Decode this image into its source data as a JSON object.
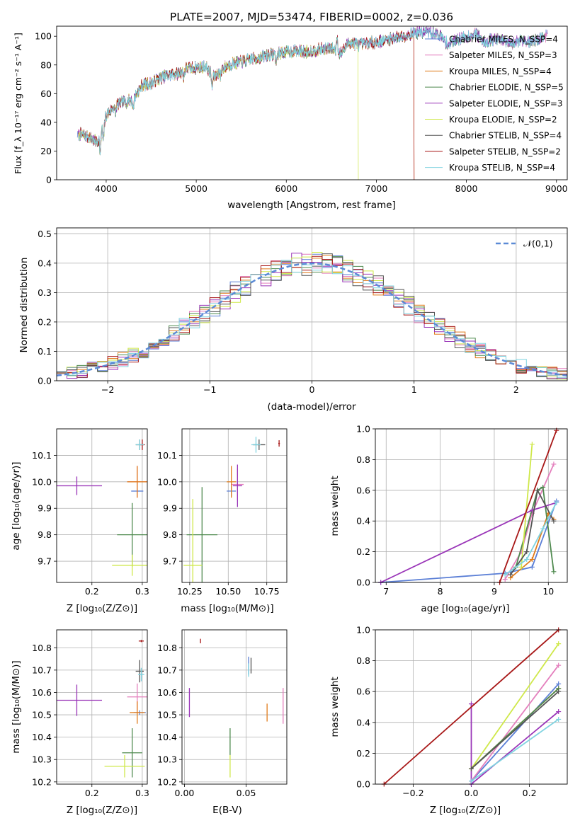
{
  "colors": [
    "#5b7fd6",
    "#e47fbd",
    "#e07b1a",
    "#4f8a4f",
    "#9a35b8",
    "#cfe84a",
    "#555555",
    "#a81818",
    "#7fd3e0"
  ],
  "chart_data": [
    {
      "id": "spectrum",
      "type": "line",
      "title": "PLATE=2007, MJD=53474, FIBERID=0002, z=0.036",
      "xlabel": "wavelength [Angstrom, rest frame]",
      "ylabel": "Flux [f_λ 10⁻¹⁷ erg cm⁻² s⁻¹ A⁻¹]",
      "xlim": [
        3450,
        9120
      ],
      "ylim": [
        0,
        107
      ],
      "xticks": [
        "4000",
        "5000",
        "6000",
        "7000",
        "8000",
        "9000"
      ],
      "yticks": [
        "0",
        "20",
        "40",
        "60",
        "80",
        "100"
      ],
      "legend": "top-right",
      "x": [
        3700,
        3800,
        3900,
        4000,
        4100,
        4200,
        4300,
        4400,
        4500,
        4600,
        4700,
        4800,
        4900,
        5000,
        5100,
        5200,
        5300,
        5400,
        5500,
        5600,
        5700,
        5800,
        5900,
        6000,
        6100,
        6200,
        6300,
        6400,
        6500,
        6600,
        6700,
        6800,
        6900,
        7000,
        7100,
        7200,
        7300,
        7400,
        7500,
        7600,
        7700,
        7800,
        7900,
        8000,
        8100,
        8200,
        8300,
        8400,
        8500,
        8600,
        8700,
        8800,
        8900
      ],
      "y": [
        32,
        30,
        26,
        45,
        52,
        54,
        56,
        66,
        67,
        71,
        73,
        74,
        78,
        78,
        79,
        72,
        78,
        81,
        82,
        84,
        85,
        87,
        88,
        89,
        90,
        89,
        90,
        91,
        92,
        88,
        96,
        94,
        95,
        96,
        97,
        99,
        100,
        102,
        103,
        103,
        101,
        94,
        98,
        99,
        102,
        96,
        98,
        97,
        94,
        98,
        96,
        98,
        101
      ],
      "series": [
        {
          "name": "Chabrier MILES, N_SSP=4",
          "cutoff_x": null
        },
        {
          "name": "Salpeter MILES, N_SSP=3",
          "cutoff_x": null
        },
        {
          "name": "Kroupa MILES, N_SSP=4",
          "cutoff_x": 7420
        },
        {
          "name": "Chabrier ELODIE, N_SSP=5",
          "cutoff_x": null
        },
        {
          "name": "Salpeter ELODIE, N_SSP=3",
          "cutoff_x": null
        },
        {
          "name": "Kroupa ELODIE, N_SSP=2",
          "cutoff_x": 6800
        },
        {
          "name": "Chabrier STELIB, N_SSP=4",
          "cutoff_x": null
        },
        {
          "name": "Salpeter STELIB, N_SSP=2",
          "cutoff_x": 7420
        },
        {
          "name": "Kroupa STELIB, N_SSP=4",
          "cutoff_x": null
        }
      ]
    },
    {
      "id": "residuals",
      "type": "line",
      "xlabel": "(data-model)/error",
      "ylabel": "Normed distribution",
      "xlim": [
        -2.5,
        2.5
      ],
      "ylim": [
        0,
        0.52
      ],
      "xticks": [
        "−2",
        "−1",
        "0",
        "1",
        "2"
      ],
      "yticks": [
        "0.0",
        "0.1",
        "0.2",
        "0.3",
        "0.4",
        "0.5"
      ],
      "grid": true,
      "legend": "top-right",
      "reference_series": {
        "name": "𝒩(0,1)",
        "mean": 0,
        "sigma": 1
      }
    },
    {
      "id": "age-vs-Z",
      "type": "scatter",
      "xlabel": "Z [log₁₀(Z/Z⊙)]",
      "ylabel": "age [log₁₀(age/yr)]",
      "xlim": [
        0.13,
        0.31
      ],
      "ylim": [
        9.62,
        10.2
      ],
      "xticks": [
        "0.2",
        "0.3"
      ],
      "yticks": [
        "9.7",
        "9.8",
        "9.9",
        "10.0",
        "10.1"
      ],
      "grid": true,
      "points": [
        {
          "x": 0.29,
          "y": 9.965,
          "xerr": 0.012,
          "yerr": 0.01,
          "c": 0
        },
        {
          "x": 0.29,
          "y": 10.0,
          "xerr": 0.02,
          "yerr": 0.06,
          "c": 1
        },
        {
          "x": 0.29,
          "y": 10.0,
          "xerr": 0.02,
          "yerr": 0.06,
          "c": 2
        },
        {
          "x": 0.28,
          "y": 9.8,
          "xerr": 0.03,
          "yerr": 0.12,
          "c": 3
        },
        {
          "x": 0.17,
          "y": 9.985,
          "xerr": 0.05,
          "yerr": 0.035,
          "c": 4
        },
        {
          "x": 0.28,
          "y": 9.685,
          "xerr": 0.04,
          "yerr": 0.04,
          "c": 5
        },
        {
          "x": 0.295,
          "y": 10.14,
          "xerr": 0.008,
          "yerr": 0.02,
          "c": 6
        },
        {
          "x": 0.3,
          "y": 10.14,
          "xerr": 0.005,
          "yerr": 0.02,
          "c": 7
        },
        {
          "x": 0.295,
          "y": 10.14,
          "xerr": 0.008,
          "yerr": 0.02,
          "c": 8
        }
      ]
    },
    {
      "id": "age-vs-mass",
      "type": "scatter",
      "xlabel": "mass [log₁₀(M/M⊙)]",
      "ylabel": "",
      "xlim": [
        10.2,
        10.88
      ],
      "ylim": [
        9.62,
        10.2
      ],
      "xticks": [
        "10.25",
        "10.50",
        "10.75"
      ],
      "yticks": [
        "9.7",
        "9.8",
        "9.9",
        "10.0",
        "10.1"
      ],
      "grid": true,
      "points": [
        {
          "x": 10.52,
          "y": 9.965,
          "xerr": 0.03,
          "yerr": 0.02,
          "c": 0
        },
        {
          "x": 10.56,
          "y": 9.99,
          "xerr": 0.04,
          "yerr": 0.06,
          "c": 1
        },
        {
          "x": 10.52,
          "y": 10.0,
          "xerr": 0.03,
          "yerr": 0.06,
          "c": 2
        },
        {
          "x": 10.33,
          "y": 9.8,
          "xerr": 0.1,
          "yerr": 0.18,
          "c": 3
        },
        {
          "x": 10.56,
          "y": 9.985,
          "xerr": 0.03,
          "yerr": 0.08,
          "c": 4
        },
        {
          "x": 10.27,
          "y": 9.685,
          "xerr": 0.06,
          "yerr": 0.25,
          "c": 5
        },
        {
          "x": 10.7,
          "y": 10.14,
          "xerr": 0.04,
          "yerr": 0.02,
          "c": 6
        },
        {
          "x": 10.83,
          "y": 10.145,
          "xerr": 0.005,
          "yerr": 0.012,
          "c": 7
        },
        {
          "x": 10.68,
          "y": 10.14,
          "xerr": 0.03,
          "yerr": 0.03,
          "c": 8
        }
      ]
    },
    {
      "id": "weight-vs-age",
      "type": "line",
      "xlabel": "age [log₁₀(age/yr)]",
      "ylabel": "mass weight",
      "xlim": [
        6.8,
        10.35
      ],
      "ylim": [
        0,
        1
      ],
      "xticks": [
        "7",
        "8",
        "9",
        "10"
      ],
      "yticks": [
        "0.0",
        "0.2",
        "0.4",
        "0.6",
        "0.8",
        "1.0"
      ],
      "grid": true,
      "series": [
        {
          "c": 0,
          "x": [
            6.9,
            9.2,
            9.7,
            10.15
          ],
          "y": [
            0.0,
            0.06,
            0.1,
            0.53
          ]
        },
        {
          "c": 1,
          "x": [
            9.2,
            9.5,
            9.7,
            10.1
          ],
          "y": [
            0.02,
            0.2,
            0.45,
            0.77
          ]
        },
        {
          "c": 2,
          "x": [
            9.3,
            9.7,
            10.0,
            10.1
          ],
          "y": [
            0.03,
            0.15,
            0.45,
            0.41
          ]
        },
        {
          "c": 3,
          "x": [
            9.4,
            9.8,
            9.9,
            10.1
          ],
          "y": [
            0.1,
            0.6,
            0.62,
            0.07
          ]
        },
        {
          "c": 4,
          "x": [
            6.9,
            9.7,
            10.15
          ],
          "y": [
            0.0,
            0.47,
            0.52
          ]
        },
        {
          "c": 5,
          "x": [
            9.5,
            9.7
          ],
          "y": [
            0.1,
            0.9
          ]
        },
        {
          "c": 6,
          "x": [
            9.3,
            9.6,
            9.8,
            10.1
          ],
          "y": [
            0.05,
            0.2,
            0.6,
            0.4
          ]
        },
        {
          "c": 7,
          "x": [
            9.1,
            10.15
          ],
          "y": [
            0.0,
            0.99
          ]
        },
        {
          "c": 8,
          "x": [
            9.2,
            9.6,
            9.9,
            10.15
          ],
          "y": [
            0.05,
            0.15,
            0.35,
            0.52
          ]
        }
      ]
    },
    {
      "id": "mass-vs-Z",
      "type": "scatter",
      "xlabel": "Z [log₁₀(Z/Z⊙)]",
      "ylabel": "mass [log₁₀(M/M⊙)]",
      "xlim": [
        0.13,
        0.31
      ],
      "ylim": [
        10.19,
        10.88
      ],
      "xticks": [
        "0.2",
        "0.3"
      ],
      "yticks": [
        "10.2",
        "10.3",
        "10.4",
        "10.5",
        "10.6",
        "10.7",
        "10.8"
      ],
      "grid": true,
      "points": [
        {
          "x": 0.295,
          "y": 10.51,
          "xerr": 0.012,
          "yerr": 0.01,
          "c": 0
        },
        {
          "x": 0.29,
          "y": 10.58,
          "xerr": 0.02,
          "yerr": 0.06,
          "c": 1
        },
        {
          "x": 0.29,
          "y": 10.51,
          "xerr": 0.015,
          "yerr": 0.05,
          "c": 2
        },
        {
          "x": 0.28,
          "y": 10.33,
          "xerr": 0.02,
          "yerr": 0.11,
          "c": 3
        },
        {
          "x": 0.17,
          "y": 10.565,
          "xerr": 0.05,
          "yerr": 0.07,
          "c": 4
        },
        {
          "x": 0.265,
          "y": 10.27,
          "xerr": 0.04,
          "yerr": 0.05,
          "c": 5
        },
        {
          "x": 0.295,
          "y": 10.695,
          "xerr": 0.008,
          "yerr": 0.05,
          "c": 6
        },
        {
          "x": 0.298,
          "y": 10.83,
          "xerr": 0.005,
          "yerr": 0.005,
          "c": 7
        },
        {
          "x": 0.298,
          "y": 10.68,
          "xerr": 0.006,
          "yerr": 0.03,
          "c": 8
        }
      ]
    },
    {
      "id": "mass-vs-EBV",
      "type": "scatter",
      "xlabel": "E(B-V)",
      "ylabel": "",
      "xlim": [
        -0.002,
        0.083
      ],
      "ylim": [
        10.19,
        10.88
      ],
      "xticks": [
        "0.00",
        "0.05"
      ],
      "yticks": [
        "10.2",
        "10.3",
        "10.4",
        "10.5",
        "10.6",
        "10.7",
        "10.8"
      ],
      "grid": true,
      "points": [
        {
          "x": 0.052,
          "y": 10.72,
          "xerr": 0.0,
          "yerr": 0.04,
          "c": 0
        },
        {
          "x": 0.08,
          "y": 10.54,
          "xerr": 0.0,
          "yerr": 0.08,
          "c": 1
        },
        {
          "x": 0.067,
          "y": 10.51,
          "xerr": 0.0,
          "yerr": 0.04,
          "c": 2
        },
        {
          "x": 0.037,
          "y": 10.38,
          "xerr": 0.0,
          "yerr": 0.06,
          "c": 3
        },
        {
          "x": 0.004,
          "y": 10.555,
          "xerr": 0.0,
          "yerr": 0.065,
          "c": 4
        },
        {
          "x": 0.037,
          "y": 10.27,
          "xerr": 0.0,
          "yerr": 0.05,
          "c": 5
        },
        {
          "x": 0.054,
          "y": 10.72,
          "xerr": 0.0,
          "yerr": 0.035,
          "c": 6
        },
        {
          "x": 0.013,
          "y": 10.83,
          "xerr": 0.0,
          "yerr": 0.01,
          "c": 7
        },
        {
          "x": 0.052,
          "y": 10.7,
          "xerr": 0.0,
          "yerr": 0.03,
          "c": 8
        }
      ]
    },
    {
      "id": "weight-vs-Z",
      "type": "line",
      "xlabel": "Z [log₁₀(Z/Z⊙)]",
      "ylabel": "mass weight",
      "xlim": [
        -0.33,
        0.33
      ],
      "ylim": [
        0,
        1
      ],
      "xticks": [
        "−0.2",
        "0.0",
        "0.2"
      ],
      "yticks": [
        "0.0",
        "0.2",
        "0.4",
        "0.6",
        "0.8",
        "1.0"
      ],
      "grid": true,
      "series": [
        {
          "c": 0,
          "x": [
            0.0,
            0.3
          ],
          "y": [
            0.02,
            0.65
          ]
        },
        {
          "c": 1,
          "x": [
            0.0,
            0.3
          ],
          "y": [
            0.02,
            0.77
          ]
        },
        {
          "c": 2,
          "x": [
            0.0,
            0.3
          ],
          "y": [
            0.1,
            0.62
          ]
        },
        {
          "c": 3,
          "x": [
            0.0,
            0.3
          ],
          "y": [
            0.1,
            0.62
          ]
        },
        {
          "c": 4,
          "x": [
            0.0,
            0.0,
            0.3
          ],
          "y": [
            0.52,
            0.0,
            0.47
          ]
        },
        {
          "c": 5,
          "x": [
            0.0,
            0.3
          ],
          "y": [
            0.1,
            0.91
          ]
        },
        {
          "c": 6,
          "x": [
            0.0,
            0.3
          ],
          "y": [
            0.1,
            0.6
          ]
        },
        {
          "c": 7,
          "x": [
            -0.3,
            0.3
          ],
          "y": [
            0.0,
            1.0
          ]
        },
        {
          "c": 8,
          "x": [
            0.0,
            0.3
          ],
          "y": [
            0.02,
            0.42
          ]
        }
      ]
    }
  ]
}
